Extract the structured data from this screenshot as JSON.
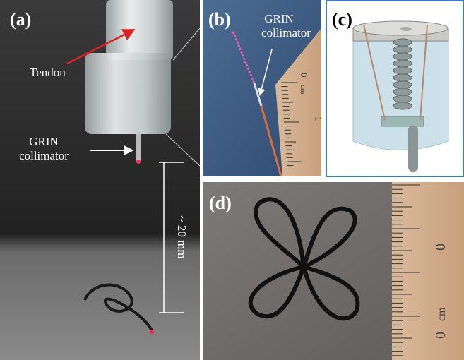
{
  "panels": {
    "a": {
      "label": "(a)",
      "tendon": "Tendon",
      "grin_line1": "GRIN",
      "grin_line2": "collimator",
      "dimension": "~ 20 mm"
    },
    "b": {
      "label": "(b)",
      "grin_line1": "GRIN",
      "grin_line2": "collimator",
      "ruler_zero": "0",
      "ruler_unit": "cm",
      "ruler_one": "1"
    },
    "c": {
      "label": "(c)"
    },
    "d": {
      "label": "(d)",
      "ruler_zero": "0",
      "ruler_unit": "cm"
    }
  }
}
